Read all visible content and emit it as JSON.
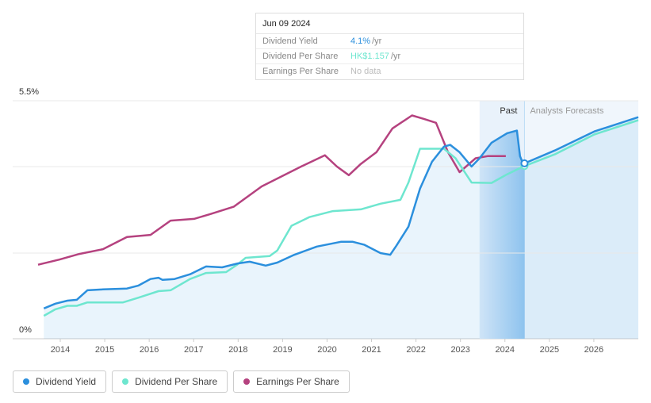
{
  "chart_data": {
    "type": "line",
    "ylim": [
      0,
      5.5
    ],
    "yticks": [
      {
        "value": 0,
        "label": "0%"
      },
      {
        "value": 5.5,
        "label": "5.5%"
      }
    ],
    "xlim": [
      2012.93,
      2027.0
    ],
    "xticks": [
      2014,
      2015,
      2016,
      2017,
      2018,
      2019,
      2020,
      2021,
      2022,
      2023,
      2024,
      2025,
      2026
    ],
    "highlight_range": [
      2023.43,
      2024.44
    ],
    "past_label": "Past",
    "forecast_label": "Analysts Forecasts",
    "series": [
      {
        "name": "Dividend Yield",
        "color": "#2b8fdd",
        "x": [
          2013.63,
          2013.89,
          2014.16,
          2014.37,
          2014.61,
          2014.96,
          2015.5,
          2015.76,
          2016.03,
          2016.21,
          2016.3,
          2016.57,
          2016.92,
          2017.28,
          2017.64,
          2017.99,
          2018.26,
          2018.62,
          2018.88,
          2019.24,
          2019.77,
          2020.31,
          2020.58,
          2020.84,
          2021.2,
          2021.42,
          2021.56,
          2021.83,
          2022.09,
          2022.36,
          2022.63,
          2022.77,
          2022.98,
          2023.25,
          2023.43,
          2023.7,
          2024.05,
          2024.27,
          2024.34,
          2024.41,
          2025.12,
          2026.01,
          2027.0
        ],
        "values": [
          0.7,
          0.81,
          0.88,
          0.9,
          1.12,
          1.14,
          1.16,
          1.23,
          1.38,
          1.41,
          1.36,
          1.38,
          1.49,
          1.67,
          1.65,
          1.74,
          1.78,
          1.69,
          1.76,
          1.93,
          2.13,
          2.24,
          2.24,
          2.17,
          1.98,
          1.94,
          2.15,
          2.59,
          3.47,
          4.09,
          4.44,
          4.48,
          4.31,
          3.98,
          4.17,
          4.53,
          4.75,
          4.81,
          4.22,
          4.04,
          4.35,
          4.79,
          5.12
        ]
      },
      {
        "name": "Dividend Per Share",
        "color": "#6ee6cf",
        "x": [
          2013.63,
          2013.89,
          2014.16,
          2014.37,
          2014.61,
          2015.41,
          2015.76,
          2016.21,
          2016.48,
          2016.92,
          2017.28,
          2017.73,
          2017.99,
          2018.17,
          2018.71,
          2018.88,
          2019.2,
          2019.6,
          2020.13,
          2020.76,
          2021.2,
          2021.65,
          2021.83,
          2022.09,
          2022.63,
          2022.89,
          2023.25,
          2023.7,
          2024.05,
          2024.41,
          2025.12,
          2026.01,
          2027.0
        ],
        "values": [
          0.53,
          0.68,
          0.76,
          0.76,
          0.84,
          0.84,
          0.95,
          1.1,
          1.12,
          1.38,
          1.52,
          1.54,
          1.72,
          1.87,
          1.91,
          2.04,
          2.61,
          2.81,
          2.95,
          2.99,
          3.12,
          3.21,
          3.61,
          4.39,
          4.39,
          4.17,
          3.61,
          3.6,
          3.8,
          3.98,
          4.26,
          4.72,
          5.05
        ]
      },
      {
        "name": "Earnings Per Share",
        "color": "#b5427f",
        "x": [
          2013.5,
          2013.98,
          2014.43,
          2014.96,
          2015.5,
          2016.03,
          2016.48,
          2017.01,
          2017.37,
          2017.9,
          2018.53,
          2019.42,
          2019.95,
          2020.22,
          2020.49,
          2020.76,
          2021.11,
          2021.47,
          2021.91,
          2022.18,
          2022.45,
          2022.72,
          2022.98,
          2023.34,
          2023.61,
          2024.02
        ],
        "values": [
          1.71,
          1.83,
          1.96,
          2.07,
          2.35,
          2.4,
          2.73,
          2.77,
          2.88,
          3.05,
          3.52,
          3.98,
          4.24,
          3.98,
          3.78,
          4.04,
          4.31,
          4.86,
          5.16,
          5.08,
          4.99,
          4.31,
          3.85,
          4.17,
          4.22,
          4.22
        ]
      }
    ]
  },
  "tooltip": {
    "date": "Jun 09 2024",
    "rows": [
      {
        "label": "Dividend Yield",
        "value": "4.1%",
        "unit": "/yr"
      },
      {
        "label": "Dividend Per Share",
        "value": "HK$1.157",
        "unit": "/yr"
      },
      {
        "label": "Earnings Per Share",
        "value": "No data"
      }
    ]
  }
}
